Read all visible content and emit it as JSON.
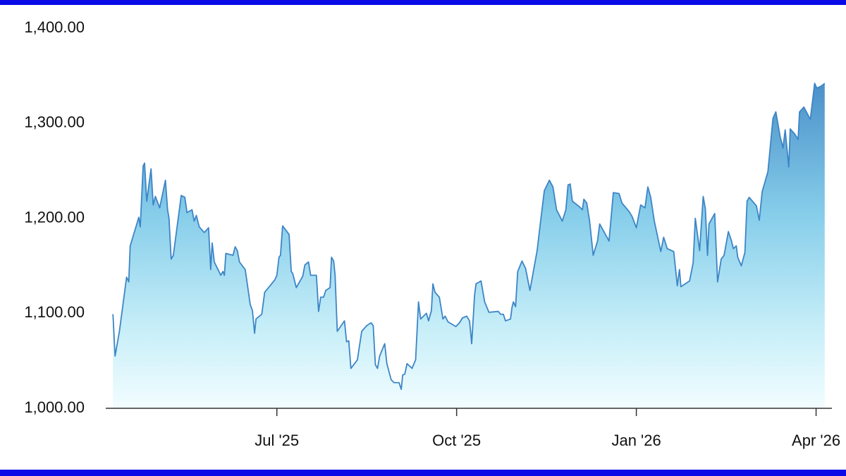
{
  "chart_data": {
    "type": "area",
    "color": "#3d85c6",
    "xlim": [
      2025.262,
      2026.272
    ],
    "xticks": [
      {
        "value": 2025.5,
        "label": "Jul '25"
      },
      {
        "value": 2025.75,
        "label": "Oct '25"
      },
      {
        "value": 2026.0,
        "label": "Jan '26"
      },
      {
        "value": 2026.25,
        "label": "Apr '26"
      }
    ],
    "ylim": [
      1000,
      1400
    ],
    "yticks": [
      {
        "value": 1000,
        "label": "1,000.00"
      },
      {
        "value": 1100,
        "label": "1,100.00"
      },
      {
        "value": 1200,
        "label": "1,200.00"
      },
      {
        "value": 1300,
        "label": "1,300.00"
      },
      {
        "value": 1400,
        "label": "1,400.00"
      }
    ],
    "x": [
      2025.272,
      2025.275,
      2025.281,
      2025.291,
      2025.294,
      2025.296,
      2025.308,
      2025.31,
      2025.314,
      2025.316,
      2025.319,
      2025.325,
      2025.328,
      2025.331,
      2025.337,
      2025.345,
      2025.348,
      2025.35,
      2025.353,
      2025.356,
      2025.367,
      2025.372,
      2025.375,
      2025.382,
      2025.385,
      2025.388,
      2025.392,
      2025.399,
      2025.405,
      2025.408,
      2025.41,
      2025.413,
      2025.422,
      2025.425,
      2025.427,
      2025.429,
      2025.439,
      2025.442,
      2025.445,
      2025.448,
      2025.456,
      2025.463,
      2025.466,
      2025.469,
      2025.471,
      2025.479,
      2025.483,
      2025.497,
      2025.5,
      2025.503,
      2025.505,
      2025.508,
      2025.517,
      2025.52,
      2025.522,
      2025.527,
      2025.536,
      2025.539,
      2025.544,
      2025.547,
      2025.555,
      2025.558,
      2025.561,
      2025.565,
      2025.568,
      2025.574,
      2025.576,
      2025.579,
      2025.581,
      2025.584,
      2025.594,
      2025.597,
      2025.6,
      2025.603,
      2025.612,
      2025.618,
      2025.625,
      2025.631,
      2025.634,
      2025.637,
      2025.64,
      2025.643,
      2025.65,
      2025.653,
      2025.659,
      2025.663,
      2025.67,
      2025.673,
      2025.675,
      2025.678,
      2025.681,
      2025.688,
      2025.693,
      2025.697,
      2025.7,
      2025.708,
      2025.711,
      2025.715,
      2025.717,
      2025.72,
      2025.726,
      2025.731,
      2025.734,
      2025.738,
      2025.749,
      2025.754,
      2025.758,
      2025.764,
      2025.768,
      2025.771,
      2025.775,
      2025.777,
      2025.784,
      2025.789,
      2025.795,
      2025.808,
      2025.811,
      2025.815,
      2025.818,
      2025.825,
      2025.827,
      2025.829,
      2025.832,
      2025.835,
      2025.841,
      2025.846,
      2025.852,
      2025.862,
      2025.867,
      2025.872,
      2025.879,
      2025.884,
      2025.889,
      2025.897,
      2025.902,
      2025.905,
      2025.908,
      2025.911,
      2025.921,
      2025.925,
      2025.927,
      2025.931,
      2025.935,
      2025.94,
      2025.946,
      2025.949,
      2025.957,
      2025.962,
      2025.968,
      2025.976,
      2025.98,
      2025.99,
      2025.994,
      2026.0,
      2026.006,
      2026.012,
      2026.016,
      2026.02,
      2026.025,
      2026.034,
      2026.038,
      2026.043,
      2026.052,
      2026.057,
      2026.06,
      2026.062,
      2026.074,
      2026.079,
      2026.082,
      2026.088,
      2026.093,
      2026.096,
      2026.099,
      2026.101,
      2026.109,
      2026.113,
      2026.118,
      2026.122,
      2026.128,
      2026.132,
      2026.135,
      2026.139,
      2026.141,
      2026.146,
      2026.151,
      2026.154,
      2026.157,
      2026.167,
      2026.171,
      2026.175,
      2026.183,
      2026.19,
      2026.194,
      2026.2,
      2026.204,
      2026.207,
      2026.212,
      2026.214,
      2026.22,
      2026.225,
      2026.227,
      2026.233,
      2026.242,
      2026.248,
      2026.251,
      2026.257,
      2026.262
    ],
    "values": [
      1099,
      1055,
      1081,
      1138,
      1133,
      1171,
      1201,
      1191,
      1255,
      1258,
      1218,
      1252,
      1214,
      1223,
      1211,
      1240,
      1209,
      1200,
      1157,
      1161,
      1224,
      1222,
      1206,
      1209,
      1197,
      1203,
      1191,
      1185,
      1190,
      1146,
      1174,
      1154,
      1140,
      1144,
      1140,
      1163,
      1161,
      1170,
      1166,
      1154,
      1146,
      1109,
      1103,
      1079,
      1094,
      1099,
      1122,
      1135,
      1140,
      1159,
      1161,
      1192,
      1183,
      1144,
      1142,
      1127,
      1139,
      1151,
      1154,
      1140,
      1140,
      1102,
      1117,
      1117,
      1124,
      1127,
      1159,
      1155,
      1140,
      1081,
      1092,
      1070,
      1071,
      1042,
      1051,
      1081,
      1087,
      1090,
      1087,
      1046,
      1042,
      1055,
      1068,
      1047,
      1030,
      1027,
      1027,
      1020,
      1035,
      1036,
      1047,
      1042,
      1051,
      1112,
      1094,
      1100,
      1092,
      1103,
      1131,
      1122,
      1117,
      1094,
      1097,
      1091,
      1086,
      1090,
      1095,
      1097,
      1092,
      1068,
      1119,
      1131,
      1134,
      1112,
      1101,
      1102,
      1099,
      1099,
      1092,
      1094,
      1106,
      1112,
      1107,
      1144,
      1155,
      1147,
      1124,
      1166,
      1198,
      1229,
      1240,
      1233,
      1209,
      1197,
      1209,
      1235,
      1236,
      1218,
      1212,
      1209,
      1220,
      1216,
      1197,
      1161,
      1176,
      1194,
      1183,
      1176,
      1227,
      1226,
      1216,
      1207,
      1202,
      1190,
      1214,
      1211,
      1233,
      1222,
      1197,
      1165,
      1180,
      1168,
      1165,
      1129,
      1146,
      1128,
      1134,
      1153,
      1200,
      1166,
      1223,
      1210,
      1161,
      1194,
      1205,
      1133,
      1157,
      1161,
      1186,
      1177,
      1168,
      1171,
      1159,
      1150,
      1164,
      1218,
      1222,
      1213,
      1198,
      1228,
      1249,
      1305,
      1312,
      1286,
      1274,
      1293,
      1254,
      1294,
      1289,
      1283,
      1312,
      1317,
      1304,
      1342,
      1337,
      1339,
      1342
    ]
  }
}
